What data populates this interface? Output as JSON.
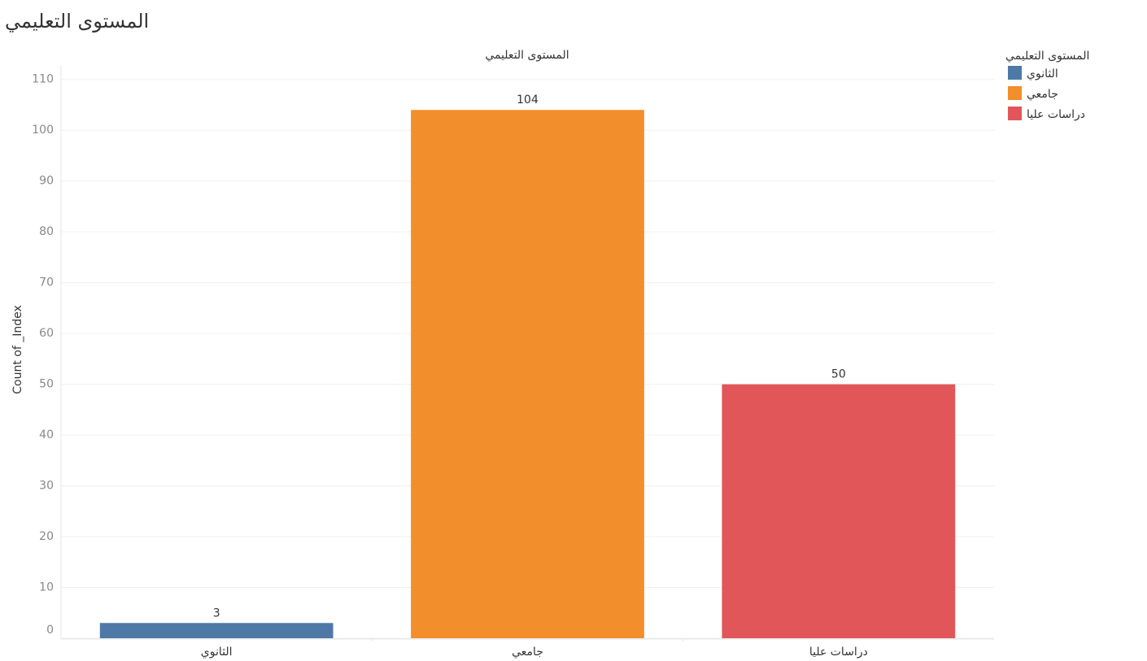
{
  "chart_data": {
    "type": "bar",
    "title": "المستوى التعليمي",
    "x_label": "المستوى التعليمي",
    "y_label": "Count of _Index",
    "legend_title": "المستوى التعليمي",
    "categories": [
      "الثانوي",
      "جامعي",
      "دراسات عليا"
    ],
    "values": [
      3,
      104,
      50
    ],
    "colors": [
      "#4e79a7",
      "#f28e2b",
      "#e15759"
    ],
    "ylim": [
      0,
      113
    ],
    "yticks": [
      0,
      10,
      20,
      30,
      40,
      50,
      60,
      70,
      80,
      90,
      100,
      110
    ],
    "grid": true,
    "legend": "right"
  }
}
